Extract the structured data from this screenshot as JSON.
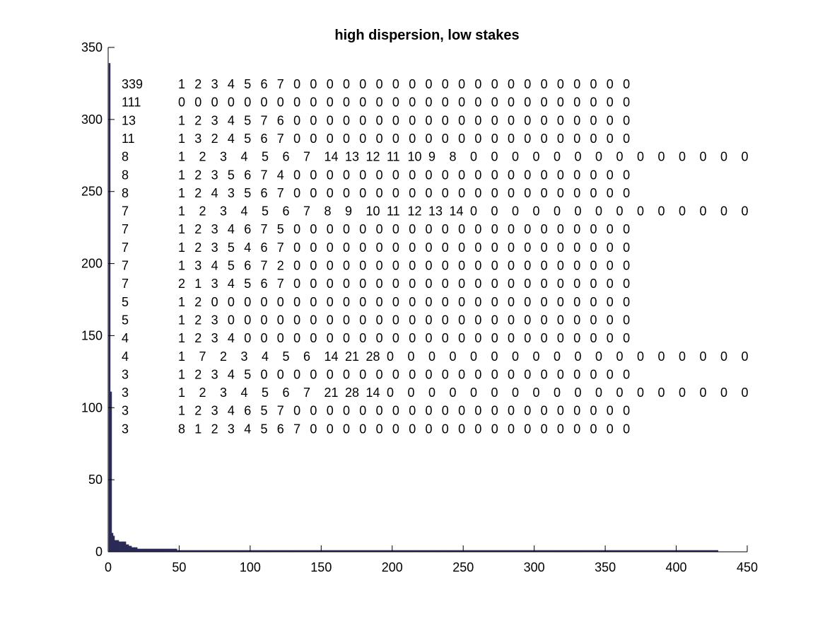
{
  "chart_data": {
    "type": "bar",
    "title": "high dispersion, low stakes",
    "xlabel": "",
    "ylabel": "",
    "xlim": [
      0,
      450
    ],
    "ylim": [
      0,
      350
    ],
    "xticks": [
      0,
      50,
      100,
      150,
      200,
      250,
      300,
      350,
      400,
      450
    ],
    "yticks": [
      0,
      50,
      100,
      150,
      200,
      250,
      300,
      350
    ],
    "grid": false,
    "bar_color": "#2b2a57",
    "bars_description": "sorted frequency counts, rank 1..429",
    "bar_segments": [
      {
        "from": 1,
        "to": 1,
        "value": 339
      },
      {
        "from": 2,
        "to": 2,
        "value": 111
      },
      {
        "from": 3,
        "to": 3,
        "value": 13
      },
      {
        "from": 4,
        "to": 4,
        "value": 11
      },
      {
        "from": 5,
        "to": 7,
        "value": 8
      },
      {
        "from": 8,
        "to": 12,
        "value": 7
      },
      {
        "from": 13,
        "to": 14,
        "value": 5
      },
      {
        "from": 15,
        "to": 16,
        "value": 4
      },
      {
        "from": 17,
        "to": 20,
        "value": 3
      },
      {
        "from": 21,
        "to": 48,
        "value": 2
      },
      {
        "from": 49,
        "to": 429,
        "value": 1
      }
    ],
    "annotations": {
      "counts": [
        "339",
        "111",
        "13",
        "11",
        "8",
        "8",
        "8",
        "7",
        "7",
        "7",
        "7",
        "7",
        "5",
        "5",
        "4",
        "4",
        "3",
        "3",
        "3",
        "3"
      ],
      "rows": [
        [
          "1",
          "2",
          "3",
          "4",
          "5",
          "6",
          "7",
          "0",
          "0",
          "0",
          "0",
          "0",
          "0",
          "0",
          "0",
          "0",
          "0",
          "0",
          "0",
          "0",
          "0",
          "0",
          "0",
          "0",
          "0",
          "0",
          "0",
          "0"
        ],
        [
          "0",
          "0",
          "0",
          "0",
          "0",
          "0",
          "0",
          "0",
          "0",
          "0",
          "0",
          "0",
          "0",
          "0",
          "0",
          "0",
          "0",
          "0",
          "0",
          "0",
          "0",
          "0",
          "0",
          "0",
          "0",
          "0",
          "0",
          "0"
        ],
        [
          "1",
          "2",
          "3",
          "4",
          "5",
          "7",
          "6",
          "0",
          "0",
          "0",
          "0",
          "0",
          "0",
          "0",
          "0",
          "0",
          "0",
          "0",
          "0",
          "0",
          "0",
          "0",
          "0",
          "0",
          "0",
          "0",
          "0",
          "0"
        ],
        [
          "1",
          "3",
          "2",
          "4",
          "5",
          "6",
          "7",
          "0",
          "0",
          "0",
          "0",
          "0",
          "0",
          "0",
          "0",
          "0",
          "0",
          "0",
          "0",
          "0",
          "0",
          "0",
          "0",
          "0",
          "0",
          "0",
          "0",
          "0"
        ],
        [
          "1",
          "2",
          "3",
          "4",
          "5",
          "6",
          "7",
          "14",
          "13",
          "12",
          "11",
          "10",
          "9",
          "8",
          "0",
          "0",
          "0",
          "0",
          "0",
          "0",
          "0",
          "0",
          "0",
          "0",
          "0",
          "0",
          "0",
          "0"
        ],
        [
          "1",
          "2",
          "3",
          "5",
          "6",
          "7",
          "4",
          "0",
          "0",
          "0",
          "0",
          "0",
          "0",
          "0",
          "0",
          "0",
          "0",
          "0",
          "0",
          "0",
          "0",
          "0",
          "0",
          "0",
          "0",
          "0",
          "0",
          "0"
        ],
        [
          "1",
          "2",
          "4",
          "3",
          "5",
          "6",
          "7",
          "0",
          "0",
          "0",
          "0",
          "0",
          "0",
          "0",
          "0",
          "0",
          "0",
          "0",
          "0",
          "0",
          "0",
          "0",
          "0",
          "0",
          "0",
          "0",
          "0",
          "0"
        ],
        [
          "1",
          "2",
          "3",
          "4",
          "5",
          "6",
          "7",
          "8",
          "9",
          "10",
          "11",
          "12",
          "13",
          "14",
          "0",
          "0",
          "0",
          "0",
          "0",
          "0",
          "0",
          "0",
          "0",
          "0",
          "0",
          "0",
          "0",
          "0"
        ],
        [
          "1",
          "2",
          "3",
          "4",
          "6",
          "7",
          "5",
          "0",
          "0",
          "0",
          "0",
          "0",
          "0",
          "0",
          "0",
          "0",
          "0",
          "0",
          "0",
          "0",
          "0",
          "0",
          "0",
          "0",
          "0",
          "0",
          "0",
          "0"
        ],
        [
          "1",
          "2",
          "3",
          "5",
          "4",
          "6",
          "7",
          "0",
          "0",
          "0",
          "0",
          "0",
          "0",
          "0",
          "0",
          "0",
          "0",
          "0",
          "0",
          "0",
          "0",
          "0",
          "0",
          "0",
          "0",
          "0",
          "0",
          "0"
        ],
        [
          "1",
          "3",
          "4",
          "5",
          "6",
          "7",
          "2",
          "0",
          "0",
          "0",
          "0",
          "0",
          "0",
          "0",
          "0",
          "0",
          "0",
          "0",
          "0",
          "0",
          "0",
          "0",
          "0",
          "0",
          "0",
          "0",
          "0",
          "0"
        ],
        [
          "2",
          "1",
          "3",
          "4",
          "5",
          "6",
          "7",
          "0",
          "0",
          "0",
          "0",
          "0",
          "0",
          "0",
          "0",
          "0",
          "0",
          "0",
          "0",
          "0",
          "0",
          "0",
          "0",
          "0",
          "0",
          "0",
          "0",
          "0"
        ],
        [
          "1",
          "2",
          "0",
          "0",
          "0",
          "0",
          "0",
          "0",
          "0",
          "0",
          "0",
          "0",
          "0",
          "0",
          "0",
          "0",
          "0",
          "0",
          "0",
          "0",
          "0",
          "0",
          "0",
          "0",
          "0",
          "0",
          "0",
          "0"
        ],
        [
          "1",
          "2",
          "3",
          "0",
          "0",
          "0",
          "0",
          "0",
          "0",
          "0",
          "0",
          "0",
          "0",
          "0",
          "0",
          "0",
          "0",
          "0",
          "0",
          "0",
          "0",
          "0",
          "0",
          "0",
          "0",
          "0",
          "0",
          "0"
        ],
        [
          "1",
          "2",
          "3",
          "4",
          "0",
          "0",
          "0",
          "0",
          "0",
          "0",
          "0",
          "0",
          "0",
          "0",
          "0",
          "0",
          "0",
          "0",
          "0",
          "0",
          "0",
          "0",
          "0",
          "0",
          "0",
          "0",
          "0",
          "0"
        ],
        [
          "1",
          "7",
          "2",
          "3",
          "4",
          "5",
          "6",
          "14",
          "21",
          "28",
          "0",
          "0",
          "0",
          "0",
          "0",
          "0",
          "0",
          "0",
          "0",
          "0",
          "0",
          "0",
          "0",
          "0",
          "0",
          "0",
          "0",
          "0"
        ],
        [
          "1",
          "2",
          "3",
          "4",
          "5",
          "0",
          "0",
          "0",
          "0",
          "0",
          "0",
          "0",
          "0",
          "0",
          "0",
          "0",
          "0",
          "0",
          "0",
          "0",
          "0",
          "0",
          "0",
          "0",
          "0",
          "0",
          "0",
          "0"
        ],
        [
          "1",
          "2",
          "3",
          "4",
          "5",
          "6",
          "7",
          "21",
          "28",
          "14",
          "0",
          "0",
          "0",
          "0",
          "0",
          "0",
          "0",
          "0",
          "0",
          "0",
          "0",
          "0",
          "0",
          "0",
          "0",
          "0",
          "0",
          "0"
        ],
        [
          "1",
          "2",
          "3",
          "4",
          "6",
          "5",
          "7",
          "0",
          "0",
          "0",
          "0",
          "0",
          "0",
          "0",
          "0",
          "0",
          "0",
          "0",
          "0",
          "0",
          "0",
          "0",
          "0",
          "0",
          "0",
          "0",
          "0",
          "0"
        ],
        [
          "8",
          "1",
          "2",
          "3",
          "4",
          "5",
          "6",
          "7",
          "0",
          "0",
          "0",
          "0",
          "0",
          "0",
          "0",
          "0",
          "0",
          "0",
          "0",
          "0",
          "0",
          "0",
          "0",
          "0",
          "0",
          "0",
          "0",
          "0"
        ]
      ]
    }
  }
}
